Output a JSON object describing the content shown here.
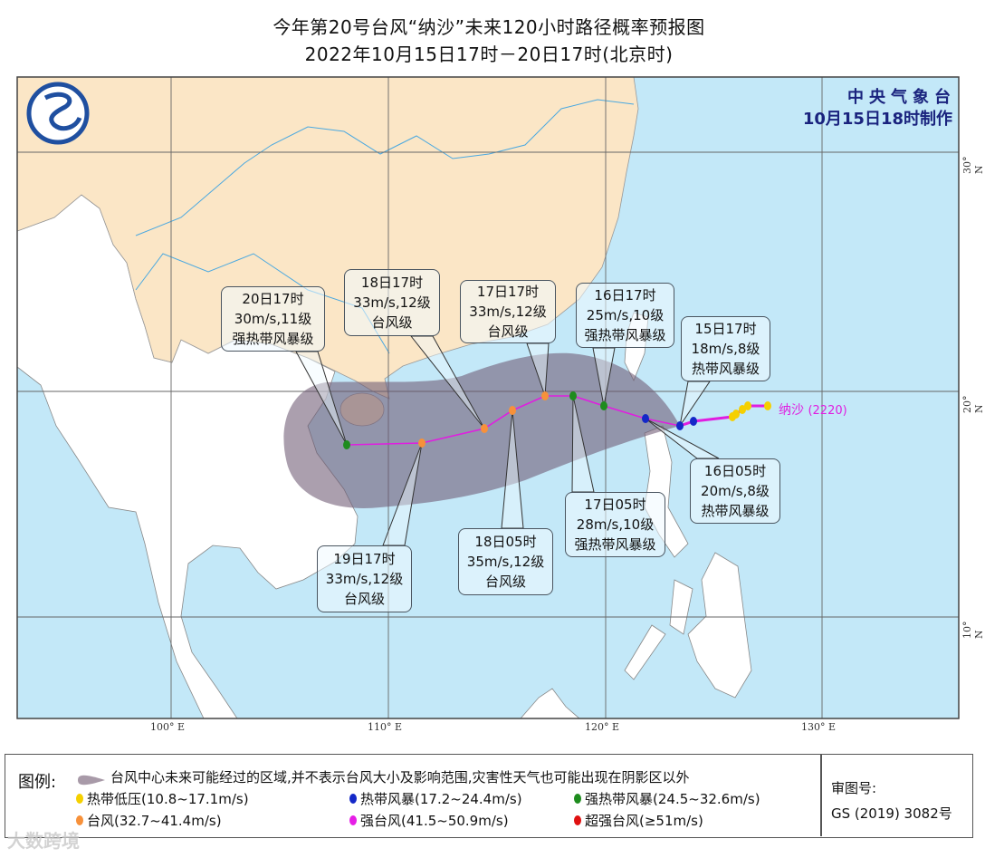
{
  "header": {
    "title": "今年第20号台风“纳沙”未来120小时路径概率预报图",
    "subtitle": "2022年10月15日17时－20日17时(北京时)"
  },
  "agency": {
    "name": "中央气象台",
    "issued": "10月15日18时制作"
  },
  "storm": {
    "name": "纳沙",
    "code": "(2220)"
  },
  "axes": {
    "lon_labels": [
      "100° E",
      "110° E",
      "120° E",
      "130° E"
    ],
    "lat_labels": [
      "30° N",
      "20° N",
      "10° N"
    ]
  },
  "callouts": [
    {
      "time": "15日17时",
      "wind": "18m/s,8级",
      "level": "热带风暴级"
    },
    {
      "time": "16日05时",
      "wind": "20m/s,8级",
      "level": "热带风暴级"
    },
    {
      "time": "16日17时",
      "wind": "25m/s,10级",
      "level": "强热带风暴级"
    },
    {
      "time": "17日05时",
      "wind": "28m/s,10级",
      "level": "强热带风暴级"
    },
    {
      "time": "17日17时",
      "wind": "33m/s,12级",
      "level": "台风级"
    },
    {
      "time": "18日05时",
      "wind": "35m/s,12级",
      "level": "台风级"
    },
    {
      "time": "18日17时",
      "wind": "33m/s,12级",
      "level": "台风级"
    },
    {
      "time": "19日17时",
      "wind": "33m/s,12级",
      "level": "台风级"
    },
    {
      "time": "20日17时",
      "wind": "30m/s,11级",
      "level": "强热带风暴级"
    }
  ],
  "track": {
    "past_categories": [
      "td",
      "td",
      "td",
      "td",
      "td",
      "ts",
      "ts"
    ],
    "forecast_categories": [
      "ts",
      "sts",
      "sts",
      "ty",
      "ty",
      "ty",
      "ty",
      "sts"
    ]
  },
  "legend": {
    "title": "图例:",
    "cone_text": "台风中心未来可能经过的区域,并不表示台风大小及影响范围,灾害性天气也可能出现在阴影区以外",
    "items": [
      {
        "key": "td",
        "label": "热带低压(10.8~17.1m/s)",
        "color": "#f5d000"
      },
      {
        "key": "ts",
        "label": "热带风暴(17.2~24.4m/s)",
        "color": "#1428c8"
      },
      {
        "key": "sts",
        "label": "强热带风暴(24.5~32.6m/s)",
        "color": "#1e8c1e"
      },
      {
        "key": "ty",
        "label": "台风(32.7~41.4m/s)",
        "color": "#f7913a"
      },
      {
        "key": "sty",
        "label": "强台风(41.5~50.9m/s)",
        "color": "#e61ee6"
      },
      {
        "key": "superty",
        "label": "超强台风(≥51m/s)",
        "color": "#e01010"
      }
    ],
    "review_label": "审图号:",
    "review_number": "GS (2019) 3082号"
  },
  "colors": {
    "sea": "#c3e8f8",
    "china": "#fbe6c6",
    "other_land": "#ffffff",
    "cone": "#6e5a74",
    "track": "#e01ee0",
    "agency": "#1a237e"
  },
  "watermark": "大数跨境"
}
